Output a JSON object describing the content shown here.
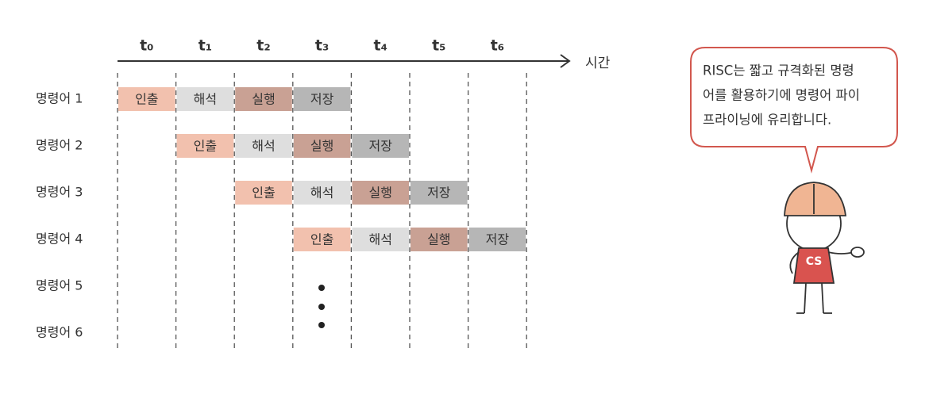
{
  "timeline": {
    "ticks": [
      "t₀",
      "t₁",
      "t₂",
      "t₃",
      "t₄",
      "t₅",
      "t₆"
    ],
    "axis_label": "시간"
  },
  "rows": [
    {
      "label": "명령어 1",
      "stages": [
        "인출",
        "해석",
        "실행",
        "저장"
      ]
    },
    {
      "label": "명령어 2",
      "stages": [
        "인출",
        "해석",
        "실행",
        "저장"
      ]
    },
    {
      "label": "명령어 3",
      "stages": [
        "인출",
        "해석",
        "실행",
        "저장"
      ]
    },
    {
      "label": "명령어 4",
      "stages": [
        "인출",
        "해석",
        "실행",
        "저장"
      ]
    },
    {
      "label": "명령어 5",
      "stages": []
    },
    {
      "label": "명령어 6",
      "stages": []
    }
  ],
  "bubble": {
    "lines": [
      "RISC는 짧고 규격화된 명령",
      "어를 활용하기에 명령어 파이",
      "프라이닝에 유리합니다."
    ]
  },
  "character": {
    "shirt": "CS"
  }
}
